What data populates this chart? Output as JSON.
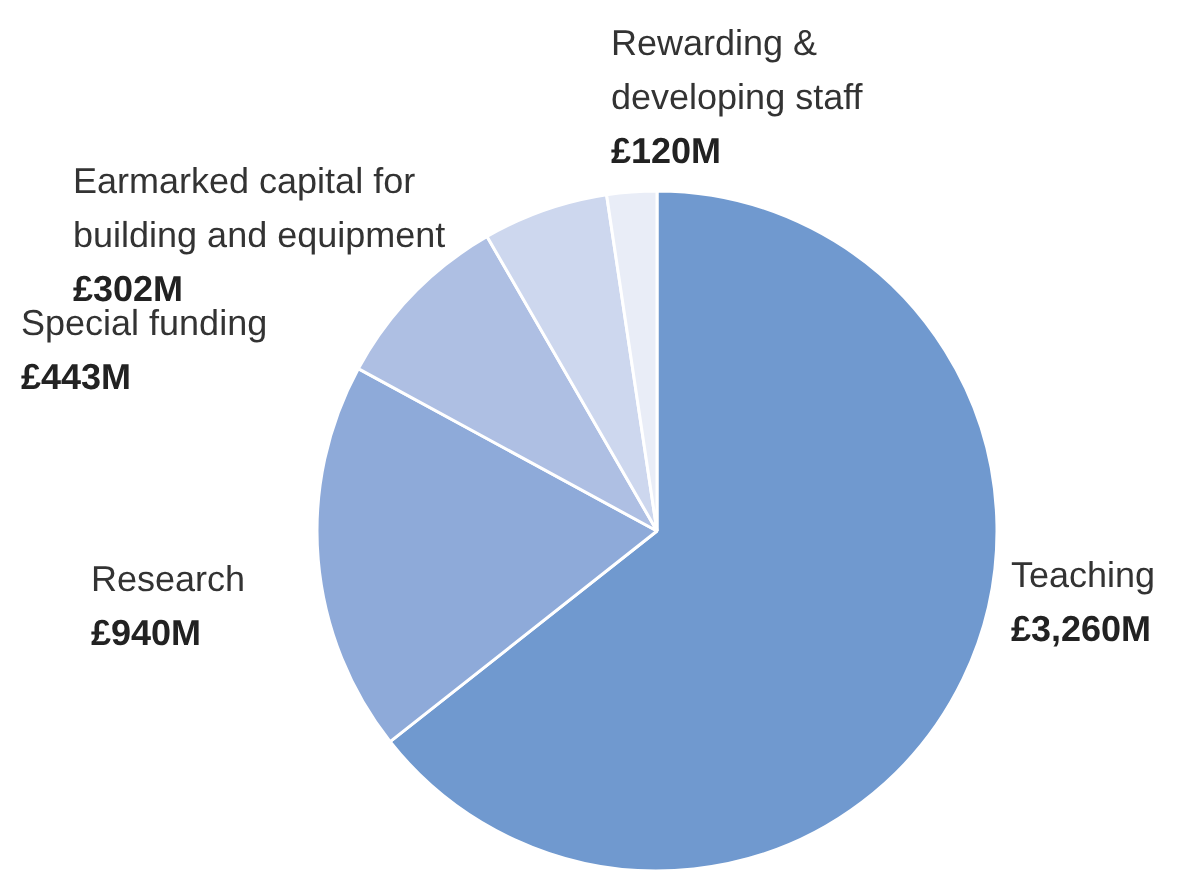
{
  "chart_data": {
    "type": "pie",
    "categories": [
      "Teaching",
      "Research",
      "Special funding",
      "Earmarked capital for building and equipment",
      "Rewarding & developing staff"
    ],
    "values": [
      3260,
      940,
      443,
      302,
      120
    ],
    "value_labels": [
      "£3,260M",
      "£940M",
      "£443M",
      "£302M",
      "£120M"
    ],
    "colors": [
      "#7099cf",
      "#8eaad9",
      "#aebfe3",
      "#cdd7ee",
      "#e9edf7"
    ]
  }
}
